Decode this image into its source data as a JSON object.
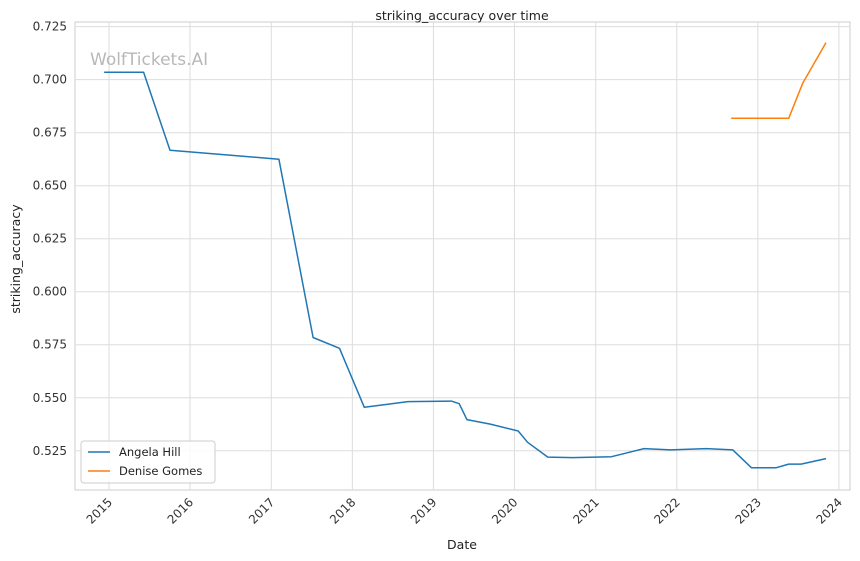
{
  "watermark": "WolfTickets.AI",
  "chart_data": {
    "type": "line",
    "title": "striking_accuracy over time",
    "xlabel": "Date",
    "ylabel": "striking_accuracy",
    "x_ticks": [
      "2015",
      "2016",
      "2017",
      "2018",
      "2019",
      "2020",
      "2021",
      "2022",
      "2023",
      "2024"
    ],
    "y_ticks": [
      "0.525",
      "0.550",
      "0.575",
      "0.600",
      "0.625",
      "0.650",
      "0.675",
      "0.700",
      "0.725"
    ],
    "xlim": [
      "2014-08-01",
      "2024-02-20"
    ],
    "ylim": [
      0.5065,
      0.7272
    ],
    "grid": true,
    "legend_position": "lower-left",
    "series": [
      {
        "name": "Angela Hill",
        "color": "#1f77b4",
        "points": [
          [
            "2014-12-10",
            0.7035
          ],
          [
            "2015-06-06",
            0.7035
          ],
          [
            "2015-10-03",
            0.6667
          ],
          [
            "2017-02-04",
            0.6625
          ],
          [
            "2017-07-08",
            0.5784
          ],
          [
            "2017-11-04",
            0.5733
          ],
          [
            "2018-02-24",
            0.5455
          ],
          [
            "2018-09-08",
            0.5482
          ],
          [
            "2019-03-23",
            0.5484
          ],
          [
            "2019-04-27",
            0.5472
          ],
          [
            "2019-06-01",
            0.5397
          ],
          [
            "2019-09-14",
            0.5376
          ],
          [
            "2020-01-18",
            0.5343
          ],
          [
            "2020-02-29",
            0.529
          ],
          [
            "2020-05-30",
            0.522
          ],
          [
            "2020-09-19",
            0.5218
          ],
          [
            "2021-03-13",
            0.5222
          ],
          [
            "2021-08-07",
            0.526
          ],
          [
            "2021-12-04",
            0.5254
          ],
          [
            "2022-05-14",
            0.526
          ],
          [
            "2022-09-10",
            0.5254
          ],
          [
            "2022-12-03",
            0.517
          ],
          [
            "2023-03-25",
            0.517
          ],
          [
            "2023-05-20",
            0.5187
          ],
          [
            "2023-07-15",
            0.5187
          ],
          [
            "2023-11-04",
            0.5213
          ]
        ]
      },
      {
        "name": "Denise Gomes",
        "color": "#ff7f0e",
        "points": [
          [
            "2022-09-03",
            0.6818
          ],
          [
            "2023-05-20",
            0.6818
          ],
          [
            "2023-07-22",
            0.6983
          ],
          [
            "2023-11-04",
            0.7175
          ]
        ]
      }
    ]
  }
}
